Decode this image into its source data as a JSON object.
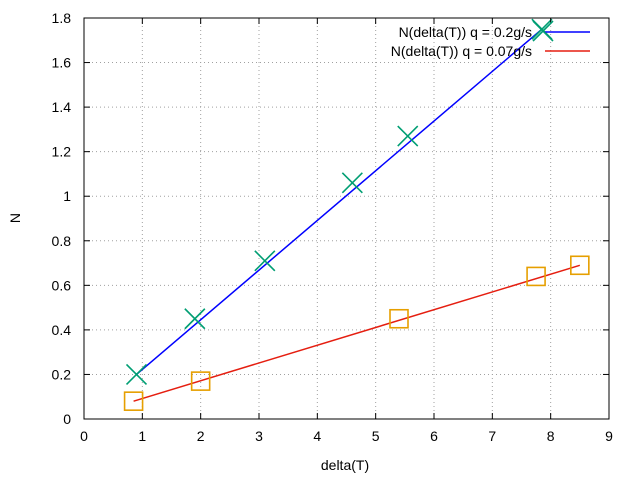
{
  "chart_data": {
    "type": "line",
    "title": "",
    "xlabel": "delta(T)",
    "ylabel": "N",
    "xlim": [
      0,
      9
    ],
    "ylim": [
      0,
      1.8
    ],
    "xticks": [
      0,
      1,
      2,
      3,
      4,
      5,
      6,
      7,
      8,
      9
    ],
    "yticks": [
      0,
      0.2,
      0.4,
      0.6,
      0.8,
      1,
      1.2,
      1.4,
      1.6,
      1.8
    ],
    "xtick_labels": [
      "0",
      "1",
      "2",
      "3",
      "4",
      "5",
      "6",
      "7",
      "8",
      "9"
    ],
    "ytick_labels": [
      "0",
      "0.2",
      "0.4",
      "0.6",
      "0.8",
      "1",
      "1.2",
      "1.4",
      "1.6",
      "1.8"
    ],
    "grid": true,
    "legend_position": "top-right",
    "series": [
      {
        "name": "N(delta(T)) q = 0.2g/s",
        "color": "#0000ff",
        "marker": "x",
        "marker_color": "#009e73",
        "points": [
          {
            "x": 0.9,
            "y": 0.2
          },
          {
            "x": 1.9,
            "y": 0.45
          },
          {
            "x": 3.1,
            "y": 0.71
          },
          {
            "x": 4.6,
            "y": 1.06
          },
          {
            "x": 5.55,
            "y": 1.27
          },
          {
            "x": 7.85,
            "y": 1.75
          }
        ],
        "fit": {
          "x": [
            0.9,
            7.85
          ],
          "y": [
            0.2,
            1.75
          ]
        }
      },
      {
        "name": "N(delta(T)) q = 0.07g/s",
        "color": "#e51e10",
        "marker": "square",
        "marker_color": "#e69f00",
        "points": [
          {
            "x": 0.85,
            "y": 0.08
          },
          {
            "x": 2.0,
            "y": 0.17
          },
          {
            "x": 5.4,
            "y": 0.45
          },
          {
            "x": 7.75,
            "y": 0.64
          },
          {
            "x": 8.5,
            "y": 0.69
          }
        ],
        "fit": {
          "x": [
            0.85,
            8.5
          ],
          "y": [
            0.08,
            0.69
          ]
        }
      }
    ]
  }
}
